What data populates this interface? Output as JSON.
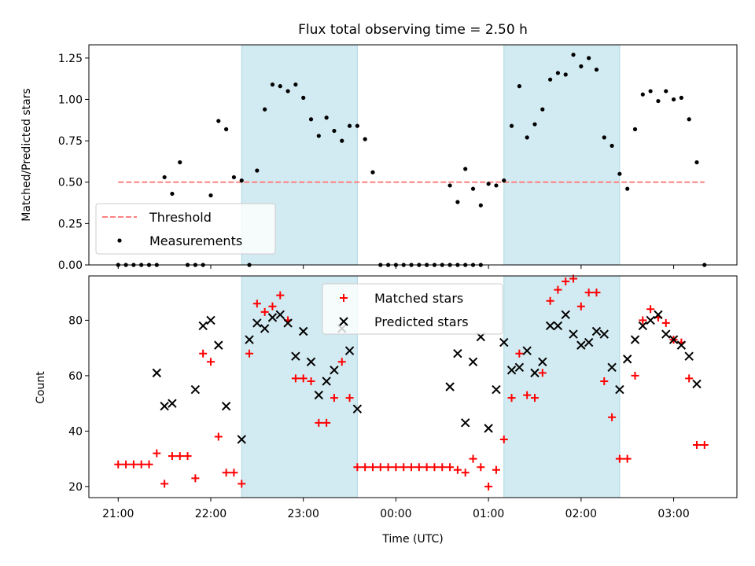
{
  "chart_data": [
    {
      "type": "scatter",
      "title": "Flux total observing time = 2.50 h",
      "xlabel": "",
      "ylabel": "Matched/Predicted stars",
      "x_unit": "time (UTC)",
      "xlim": [
        "20:41",
        "03:41"
      ],
      "ylim": [
        0,
        1.33
      ],
      "yticks": [
        "0.00",
        "0.25",
        "0.50",
        "0.75",
        "1.00",
        "1.25"
      ],
      "xticks": [
        "21:00",
        "22:00",
        "23:00",
        "00:00",
        "01:00",
        "02:00",
        "03:00"
      ],
      "shaded_intervals": [
        [
          "22:20",
          "23:35"
        ],
        [
          "01:10",
          "02:25"
        ]
      ],
      "shade_color": "#add8e6",
      "legend": {
        "position": "lower-left"
      },
      "threshold": {
        "name": "Threshold",
        "value": 0.5,
        "x_range": [
          "21:00",
          "03:20"
        ],
        "color": "#ff8080"
      },
      "series": [
        {
          "name": "Measurements",
          "color": "#000000",
          "marker": "dot",
          "points": [
            [
              "21:00",
              0
            ],
            [
              "21:05",
              0
            ],
            [
              "21:10",
              0
            ],
            [
              "21:15",
              0
            ],
            [
              "21:20",
              0
            ],
            [
              "21:25",
              0
            ],
            [
              "21:30",
              0.53
            ],
            [
              "21:35",
              0.43
            ],
            [
              "21:40",
              0.62
            ],
            [
              "21:45",
              0
            ],
            [
              "21:50",
              0
            ],
            [
              "21:55",
              0
            ],
            [
              "22:00",
              0.42
            ],
            [
              "22:05",
              0.87
            ],
            [
              "22:10",
              0.82
            ],
            [
              "22:15",
              0.53
            ],
            [
              "22:20",
              0.51
            ],
            [
              "22:25",
              0
            ],
            [
              "22:30",
              0.57
            ],
            [
              "22:35",
              0.94
            ],
            [
              "22:40",
              1.09
            ],
            [
              "22:45",
              1.08
            ],
            [
              "22:50",
              1.05
            ],
            [
              "22:55",
              1.09
            ],
            [
              "23:00",
              1.01
            ],
            [
              "23:05",
              0.88
            ],
            [
              "23:10",
              0.78
            ],
            [
              "23:15",
              0.89
            ],
            [
              "23:20",
              0.81
            ],
            [
              "23:25",
              0.75
            ],
            [
              "23:30",
              0.84
            ],
            [
              "23:35",
              0.84
            ],
            [
              "23:40",
              0.76
            ],
            [
              "23:45",
              0.56
            ],
            [
              "23:50",
              0
            ],
            [
              "23:55",
              0
            ],
            [
              "00:00",
              0
            ],
            [
              "00:05",
              0
            ],
            [
              "00:10",
              0
            ],
            [
              "00:15",
              0
            ],
            [
              "00:20",
              0
            ],
            [
              "00:25",
              0
            ],
            [
              "00:30",
              0
            ],
            [
              "00:35",
              0
            ],
            [
              "00:40",
              0
            ],
            [
              "00:45",
              0
            ],
            [
              "00:50",
              0
            ],
            [
              "00:55",
              0
            ],
            [
              "00:35",
              0.48
            ],
            [
              "00:40",
              0.38
            ],
            [
              "00:45",
              0.58
            ],
            [
              "00:50",
              0.46
            ],
            [
              "00:55",
              0.36
            ],
            [
              "01:00",
              0.49
            ],
            [
              "01:05",
              0.48
            ],
            [
              "01:10",
              0.51
            ],
            [
              "01:15",
              0.84
            ],
            [
              "01:20",
              1.08
            ],
            [
              "01:25",
              0.77
            ],
            [
              "01:30",
              0.85
            ],
            [
              "01:35",
              0.94
            ],
            [
              "01:40",
              1.12
            ],
            [
              "01:45",
              1.16
            ],
            [
              "01:50",
              1.15
            ],
            [
              "01:55",
              1.27
            ],
            [
              "02:00",
              1.2
            ],
            [
              "02:05",
              1.25
            ],
            [
              "02:10",
              1.18
            ],
            [
              "02:15",
              0.77
            ],
            [
              "02:20",
              0.72
            ],
            [
              "02:25",
              0.55
            ],
            [
              "02:30",
              0.46
            ],
            [
              "02:35",
              0.82
            ],
            [
              "02:40",
              1.03
            ],
            [
              "02:45",
              1.05
            ],
            [
              "02:50",
              0.99
            ],
            [
              "02:55",
              1.05
            ],
            [
              "03:00",
              1.0
            ],
            [
              "03:05",
              1.01
            ],
            [
              "03:10",
              0.88
            ],
            [
              "03:15",
              0.62
            ],
            [
              "03:20",
              0
            ]
          ]
        }
      ]
    },
    {
      "type": "scatter",
      "title": "",
      "xlabel": "Time (UTC)",
      "ylabel": "Count",
      "xlim": [
        "20:41",
        "03:41"
      ],
      "ylim": [
        16,
        96
      ],
      "yticks": [
        "20",
        "40",
        "60",
        "80"
      ],
      "xticks": [
        "21:00",
        "22:00",
        "23:00",
        "00:00",
        "01:00",
        "02:00",
        "03:00"
      ],
      "shaded_intervals": [
        [
          "22:20",
          "23:35"
        ],
        [
          "01:10",
          "02:25"
        ]
      ],
      "legend": {
        "position": "top-center"
      },
      "series": [
        {
          "name": "Matched stars",
          "color": "#ff0000",
          "marker": "plus",
          "points": [
            [
              "21:00",
              28
            ],
            [
              "21:05",
              28
            ],
            [
              "21:10",
              28
            ],
            [
              "21:15",
              28
            ],
            [
              "21:20",
              28
            ],
            [
              "21:25",
              32
            ],
            [
              "21:30",
              21
            ],
            [
              "21:35",
              31
            ],
            [
              "21:40",
              31
            ],
            [
              "21:45",
              31
            ],
            [
              "21:50",
              23
            ],
            [
              "21:55",
              68
            ],
            [
              "22:00",
              65
            ],
            [
              "22:05",
              38
            ],
            [
              "22:10",
              25
            ],
            [
              "22:15",
              25
            ],
            [
              "22:20",
              21
            ],
            [
              "22:25",
              68
            ],
            [
              "22:30",
              86
            ],
            [
              "22:35",
              83
            ],
            [
              "22:40",
              85
            ],
            [
              "22:45",
              89
            ],
            [
              "22:50",
              80
            ],
            [
              "22:55",
              59
            ],
            [
              "23:00",
              59
            ],
            [
              "23:05",
              58
            ],
            [
              "23:10",
              43
            ],
            [
              "23:15",
              43
            ],
            [
              "23:20",
              52
            ],
            [
              "23:25",
              65
            ],
            [
              "23:30",
              52
            ],
            [
              "23:35",
              27
            ],
            [
              "23:40",
              27
            ],
            [
              "23:45",
              27
            ],
            [
              "23:50",
              27
            ],
            [
              "23:55",
              27
            ],
            [
              "00:00",
              27
            ],
            [
              "00:05",
              27
            ],
            [
              "00:10",
              27
            ],
            [
              "00:15",
              27
            ],
            [
              "00:20",
              27
            ],
            [
              "00:25",
              27
            ],
            [
              "00:30",
              27
            ],
            [
              "00:35",
              27
            ],
            [
              "00:40",
              26
            ],
            [
              "00:45",
              25
            ],
            [
              "00:50",
              30
            ],
            [
              "00:55",
              27
            ],
            [
              "01:00",
              20
            ],
            [
              "01:05",
              26
            ],
            [
              "01:10",
              37
            ],
            [
              "01:15",
              52
            ],
            [
              "01:20",
              68
            ],
            [
              "01:25",
              53
            ],
            [
              "01:30",
              52
            ],
            [
              "01:35",
              61
            ],
            [
              "01:40",
              87
            ],
            [
              "01:45",
              91
            ],
            [
              "01:50",
              94
            ],
            [
              "01:55",
              95
            ],
            [
              "02:00",
              85
            ],
            [
              "02:05",
              90
            ],
            [
              "02:10",
              90
            ],
            [
              "02:15",
              58
            ],
            [
              "02:20",
              45
            ],
            [
              "02:25",
              30
            ],
            [
              "02:30",
              30
            ],
            [
              "02:35",
              60
            ],
            [
              "02:40",
              80
            ],
            [
              "02:45",
              84
            ],
            [
              "02:50",
              81
            ],
            [
              "02:55",
              79
            ],
            [
              "03:00",
              73
            ],
            [
              "03:05",
              72
            ],
            [
              "03:10",
              59
            ],
            [
              "03:15",
              35
            ],
            [
              "03:20",
              35
            ]
          ]
        },
        {
          "name": "Predicted stars",
          "color": "#000000",
          "marker": "x",
          "points": [
            [
              "21:25",
              61
            ],
            [
              "21:30",
              49
            ],
            [
              "21:35",
              50
            ],
            [
              "21:50",
              55
            ],
            [
              "21:55",
              78
            ],
            [
              "22:00",
              80
            ],
            [
              "22:05",
              71
            ],
            [
              "22:10",
              49
            ],
            [
              "22:20",
              37
            ],
            [
              "22:25",
              73
            ],
            [
              "22:30",
              79
            ],
            [
              "22:35",
              77
            ],
            [
              "22:40",
              81
            ],
            [
              "22:45",
              82
            ],
            [
              "22:50",
              79
            ],
            [
              "22:55",
              67
            ],
            [
              "23:00",
              76
            ],
            [
              "23:05",
              65
            ],
            [
              "23:10",
              53
            ],
            [
              "23:15",
              58
            ],
            [
              "23:20",
              62
            ],
            [
              "23:25",
              77
            ],
            [
              "23:30",
              69
            ],
            [
              "23:35",
              48
            ],
            [
              "00:35",
              56
            ],
            [
              "00:40",
              68
            ],
            [
              "00:45",
              43
            ],
            [
              "00:50",
              65
            ],
            [
              "00:55",
              74
            ],
            [
              "01:00",
              41
            ],
            [
              "01:05",
              55
            ],
            [
              "01:10",
              72
            ],
            [
              "01:15",
              62
            ],
            [
              "01:20",
              63
            ],
            [
              "01:25",
              69
            ],
            [
              "01:30",
              61
            ],
            [
              "01:35",
              65
            ],
            [
              "01:40",
              78
            ],
            [
              "01:45",
              78
            ],
            [
              "01:50",
              82
            ],
            [
              "01:55",
              75
            ],
            [
              "02:00",
              71
            ],
            [
              "02:05",
              72
            ],
            [
              "02:10",
              76
            ],
            [
              "02:15",
              75
            ],
            [
              "02:20",
              63
            ],
            [
              "02:25",
              55
            ],
            [
              "02:30",
              66
            ],
            [
              "02:35",
              73
            ],
            [
              "02:40",
              78
            ],
            [
              "02:45",
              80
            ],
            [
              "02:50",
              82
            ],
            [
              "02:55",
              75
            ],
            [
              "03:00",
              73
            ],
            [
              "03:05",
              71
            ],
            [
              "03:10",
              67
            ],
            [
              "03:15",
              57
            ]
          ]
        }
      ]
    }
  ]
}
